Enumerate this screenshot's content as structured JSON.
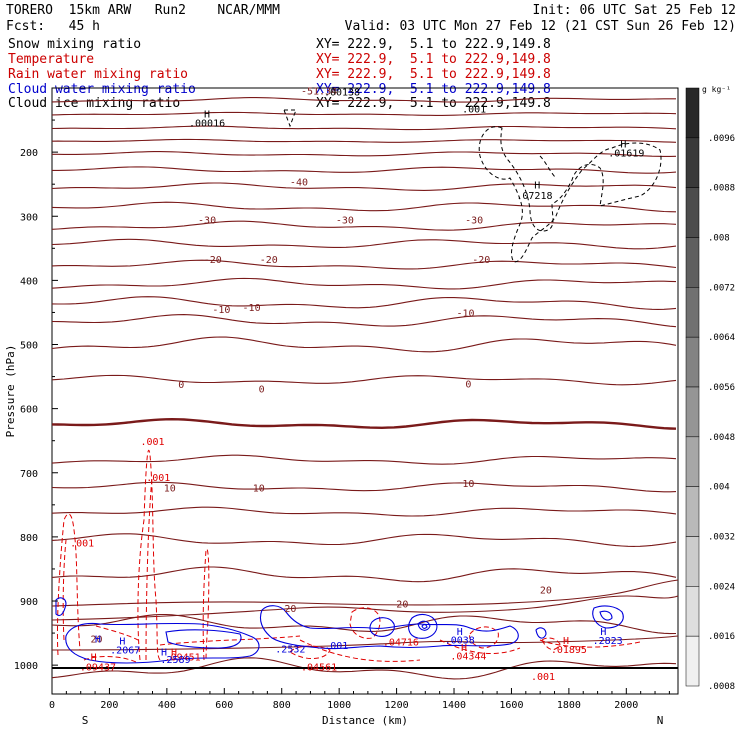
{
  "header": {
    "title": "TORERO  15km ARW   Run2    NCAR/MMM",
    "init": "Init: 06 UTC Sat 25 Feb 12",
    "fcst": "Fcst:   45 h",
    "valid": "Valid: 03 UTC Mon 27 Feb 12 (21 CST Sun 26 Feb 12)"
  },
  "legend": [
    {
      "name": "Snow mixing ratio",
      "color": "#000000",
      "xy": "XY= 222.9,  5.1 to 222.9,149.8",
      "xy_color": "#000000"
    },
    {
      "name": "Temperature",
      "color": "#cc0000",
      "xy": "XY= 222.9,  5.1 to 222.9,149.8",
      "xy_color": "#cc0000"
    },
    {
      "name": "Rain water mixing ratio",
      "color": "#cc0000",
      "xy": "XY= 222.9,  5.1 to 222.9,149.8",
      "xy_color": "#cc0000"
    },
    {
      "name": "Cloud water mixing ratio",
      "color": "#0000cc",
      "xy": "XY= 222.9,  5.1 to 222.9,149.8",
      "xy_color": "#0000cc"
    },
    {
      "name": "Cloud ice mixing ratio",
      "color": "#000000",
      "xy": "XY= 222.9,  5.1 to 222.9,149.8",
      "xy_color": "#000000"
    }
  ],
  "colors": {
    "temperature": "#7a1a1a",
    "rain": "#e00000",
    "cloud_water": "#0000dd",
    "ice": "#000000",
    "axis": "#000000"
  },
  "chart_data": {
    "type": "contour",
    "xlabel": "Distance (km)",
    "ylabel": "Pressure (hPa)",
    "xlim": [
      0,
      2180
    ],
    "ylim": [
      1045,
      100
    ],
    "x_ticks": [
      0,
      200,
      400,
      600,
      800,
      1000,
      1200,
      1400,
      1600,
      1800,
      2000
    ],
    "y_ticks": [
      200,
      300,
      400,
      500,
      600,
      700,
      800,
      900,
      1000
    ],
    "x_end_labels": {
      "left": "S",
      "right": "N"
    },
    "colorbar": {
      "unit": "g kg⁻¹",
      "ticks": [
        ".0096",
        ".0088",
        ".008",
        ".0072",
        ".0064",
        ".0056",
        ".0048",
        ".004",
        ".0032",
        ".0024",
        ".0016",
        ".0008"
      ]
    },
    "temperature_labels": [
      {
        "x": 930,
        "p": 110,
        "text": "-51.34"
      },
      {
        "x": 860,
        "p": 252,
        "text": "-40"
      },
      {
        "x": 540,
        "p": 311,
        "text": "-30"
      },
      {
        "x": 1020,
        "p": 311,
        "text": "-30"
      },
      {
        "x": 1470,
        "p": 311,
        "text": "-30"
      },
      {
        "x": 560,
        "p": 373,
        "text": "-20"
      },
      {
        "x": 755,
        "p": 373,
        "text": "-20"
      },
      {
        "x": 1495,
        "p": 373,
        "text": "-20"
      },
      {
        "x": 590,
        "p": 451,
        "text": "-10"
      },
      {
        "x": 695,
        "p": 448,
        "text": "-10"
      },
      {
        "x": 1440,
        "p": 456,
        "text": "-10"
      },
      {
        "x": 450,
        "p": 568,
        "text": "0"
      },
      {
        "x": 730,
        "p": 575,
        "text": "0"
      },
      {
        "x": 1450,
        "p": 567,
        "text": "0"
      },
      {
        "x": 410,
        "p": 729,
        "text": "10"
      },
      {
        "x": 720,
        "p": 729,
        "text": "10"
      },
      {
        "x": 1450,
        "p": 722,
        "text": "10"
      },
      {
        "x": 830,
        "p": 917,
        "text": "20"
      },
      {
        "x": 1220,
        "p": 910,
        "text": "20"
      },
      {
        "x": 1720,
        "p": 888,
        "text": "20"
      },
      {
        "x": 155,
        "p": 965,
        "text": "20"
      }
    ],
    "ice_labels": [
      {
        "x": 540,
        "p": 146,
        "text": "H"
      },
      {
        "x": 540,
        "p": 160,
        "text": ".00016"
      },
      {
        "x": 1010,
        "p": 112,
        "text": ".00138"
      },
      {
        "x": 1470,
        "p": 138,
        "text": ".001"
      },
      {
        "x": 1690,
        "p": 257,
        "text": "H"
      },
      {
        "x": 1680,
        "p": 273,
        "text": ".07218"
      },
      {
        "x": 1990,
        "p": 193,
        "text": "H"
      },
      {
        "x": 2000,
        "p": 207,
        "text": ".01619"
      }
    ],
    "rain_labels": [
      {
        "x": 350,
        "p": 657,
        "text": ".001"
      },
      {
        "x": 370,
        "p": 713,
        "text": ".001"
      },
      {
        "x": 105,
        "p": 815,
        "text": ".001"
      },
      {
        "x": 145,
        "p": 993,
        "text": "H"
      },
      {
        "x": 160,
        "p": 1008,
        "text": ".09437"
      },
      {
        "x": 425,
        "p": 985,
        "text": "H"
      },
      {
        "x": 455,
        "p": 993,
        "text": ".09451"
      },
      {
        "x": 930,
        "p": 1008,
        "text": ".04561"
      },
      {
        "x": 1215,
        "p": 969,
        "text": ".04716"
      },
      {
        "x": 1435,
        "p": 978,
        "text": "H"
      },
      {
        "x": 1450,
        "p": 991,
        "text": ".04344"
      },
      {
        "x": 1790,
        "p": 967,
        "text": "H"
      },
      {
        "x": 1800,
        "p": 981,
        "text": ".01895"
      },
      {
        "x": 1710,
        "p": 1023,
        "text": ".001"
      }
    ],
    "cloud_labels": [
      {
        "x": 160,
        "p": 965,
        "text": "H"
      },
      {
        "x": 245,
        "p": 968,
        "text": "H"
      },
      {
        "x": 255,
        "p": 982,
        "text": ".2067"
      },
      {
        "x": 390,
        "p": 985,
        "text": "H"
      },
      {
        "x": 430,
        "p": 997,
        "text": ".2589"
      },
      {
        "x": 830,
        "p": 980,
        "text": ".2532"
      },
      {
        "x": 990,
        "p": 975,
        "text": ".001"
      },
      {
        "x": 1420,
        "p": 953,
        "text": "H"
      },
      {
        "x": 1420,
        "p": 966,
        "text": ".0038"
      },
      {
        "x": 1920,
        "p": 953,
        "text": "H"
      },
      {
        "x": 1935,
        "p": 967,
        "text": ".2823"
      }
    ]
  }
}
